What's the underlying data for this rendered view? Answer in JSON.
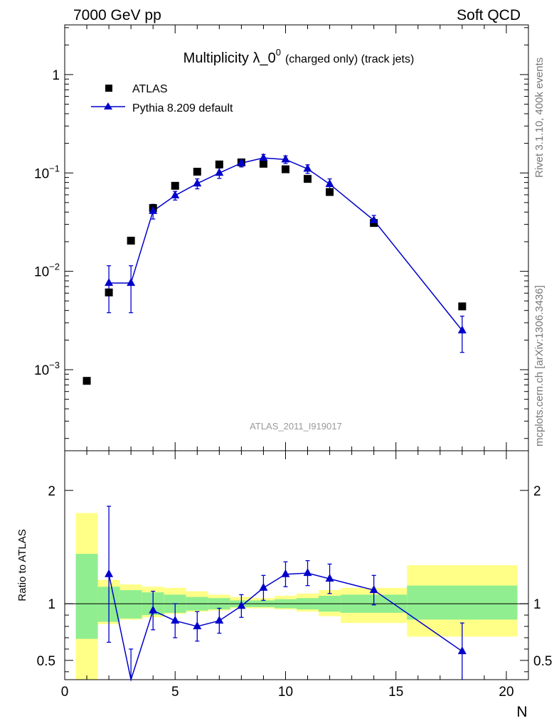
{
  "header": {
    "left": "7000 GeV pp",
    "right": "Soft QCD"
  },
  "side_labels": {
    "rivet": "Rivet 3.1.10,  400k events",
    "mcplots": "mcplots.cern.ch [arXiv:1306.3436]"
  },
  "chart_data": [
    {
      "type": "scatter",
      "title": "Multiplicity λ_0",
      "title_superscript": "0",
      "title_suffix": "(charged only) (track jets)",
      "watermark": "ATLAS_2011_I919017",
      "yscale": "log",
      "xlim": [
        0,
        21
      ],
      "ylim": [
        0.00015,
        3.2
      ],
      "ytick_labels": [
        {
          "value": 1,
          "base": "1",
          "exp": ""
        },
        {
          "value": 0.1,
          "base": "10",
          "exp": "−1"
        },
        {
          "value": 0.01,
          "base": "10",
          "exp": "−2"
        },
        {
          "value": 0.001,
          "base": "10",
          "exp": "−3"
        }
      ],
      "legend_position": "top-left",
      "series": [
        {
          "name": "ATLAS",
          "marker": "square",
          "color": "#000000",
          "x": [
            1,
            2,
            3,
            4,
            5,
            6,
            7,
            8,
            9,
            10,
            11,
            12,
            14,
            18
          ],
          "y": [
            0.00077,
            0.0061,
            0.0205,
            0.044,
            0.074,
            0.103,
            0.122,
            0.128,
            0.124,
            0.109,
            0.087,
            0.064,
            0.031,
            0.0044
          ]
        },
        {
          "name": "Pythia 8.209 default",
          "marker": "triangle",
          "color": "#0000cc",
          "x": [
            2,
            3,
            4,
            5,
            6,
            7,
            8,
            9,
            10,
            11,
            12,
            14,
            18
          ],
          "y": [
            0.0076,
            0.0076,
            0.041,
            0.059,
            0.078,
            0.1,
            0.126,
            0.142,
            0.137,
            0.11,
            0.077,
            0.033,
            0.0025
          ],
          "yerr_low": [
            0.0038,
            0.0038,
            0.007,
            0.006,
            0.009,
            0.012,
            0.011,
            0.012,
            0.012,
            0.011,
            0.01,
            0.004,
            0.001
          ],
          "yerr_high": [
            0.0038,
            0.0038,
            0.007,
            0.006,
            0.009,
            0.012,
            0.011,
            0.012,
            0.012,
            0.011,
            0.01,
            0.004,
            0.001
          ]
        }
      ]
    },
    {
      "type": "line",
      "ylabel": "Ratio to ATLAS",
      "xlabel": "N",
      "xlim": [
        0,
        21
      ],
      "ylim": [
        0.33,
        2.35
      ],
      "xticks": [
        0,
        5,
        10,
        15,
        20
      ],
      "yticks": [
        0.5,
        1,
        2
      ],
      "reference_line": 1,
      "bands": [
        {
          "x0": 0.5,
          "x1": 1.5,
          "green": [
            0.69,
            1.44
          ],
          "yellow": [
            0.2,
            1.8
          ]
        },
        {
          "x0": 1.5,
          "x1": 2.5,
          "green": [
            0.84,
            1.15
          ],
          "yellow": [
            0.82,
            1.21
          ]
        },
        {
          "x0": 2.5,
          "x1": 3.5,
          "green": [
            0.87,
            1.12
          ],
          "yellow": [
            0.86,
            1.17
          ]
        },
        {
          "x0": 3.5,
          "x1": 4.5,
          "green": [
            0.9,
            1.1
          ],
          "yellow": [
            0.88,
            1.15
          ]
        },
        {
          "x0": 4.5,
          "x1": 5.5,
          "green": [
            0.92,
            1.08
          ],
          "yellow": [
            0.91,
            1.14
          ]
        },
        {
          "x0": 5.5,
          "x1": 6.5,
          "green": [
            0.94,
            1.06
          ],
          "yellow": [
            0.93,
            1.11
          ]
        },
        {
          "x0": 6.5,
          "x1": 7.5,
          "green": [
            0.95,
            1.05
          ],
          "yellow": [
            0.94,
            1.08
          ]
        },
        {
          "x0": 7.5,
          "x1": 8.5,
          "green": [
            0.97,
            1.03
          ],
          "yellow": [
            0.96,
            1.06
          ]
        },
        {
          "x0": 8.5,
          "x1": 9.5,
          "green": [
            0.97,
            1.03
          ],
          "yellow": [
            0.96,
            1.05
          ]
        },
        {
          "x0": 9.5,
          "x1": 10.5,
          "green": [
            0.96,
            1.04
          ],
          "yellow": [
            0.95,
            1.07
          ]
        },
        {
          "x0": 10.5,
          "x1": 11.5,
          "green": [
            0.95,
            1.05
          ],
          "yellow": [
            0.93,
            1.09
          ]
        },
        {
          "x0": 11.5,
          "x1": 12.5,
          "green": [
            0.93,
            1.07
          ],
          "yellow": [
            0.89,
            1.12
          ]
        },
        {
          "x0": 12.5,
          "x1": 15.5,
          "green": [
            0.92,
            1.08
          ],
          "yellow": [
            0.83,
            1.14
          ]
        },
        {
          "x0": 15.5,
          "x1": 20.5,
          "green": [
            0.86,
            1.16
          ],
          "yellow": [
            0.71,
            1.34
          ]
        }
      ],
      "band_colors": {
        "green": "#90ee90",
        "yellow": "#ffff88"
      },
      "series": [
        {
          "name": "Pythia 8.209 default",
          "color": "#0000cc",
          "x": [
            2,
            3,
            4,
            5,
            6,
            7,
            8,
            9,
            10,
            11,
            12,
            14,
            18
          ],
          "y": [
            1.26,
            0.3,
            0.94,
            0.85,
            0.8,
            0.85,
            0.98,
            1.14,
            1.26,
            1.27,
            1.22,
            1.12,
            0.58
          ],
          "yerr_low": [
            0.6,
            0.3,
            0.17,
            0.15,
            0.13,
            0.11,
            0.1,
            0.11,
            0.11,
            0.11,
            0.13,
            0.13,
            0.25
          ],
          "yerr_high": [
            0.6,
            0.3,
            0.17,
            0.15,
            0.13,
            0.11,
            0.1,
            0.11,
            0.11,
            0.11,
            0.13,
            0.13,
            0.25
          ]
        }
      ]
    }
  ]
}
